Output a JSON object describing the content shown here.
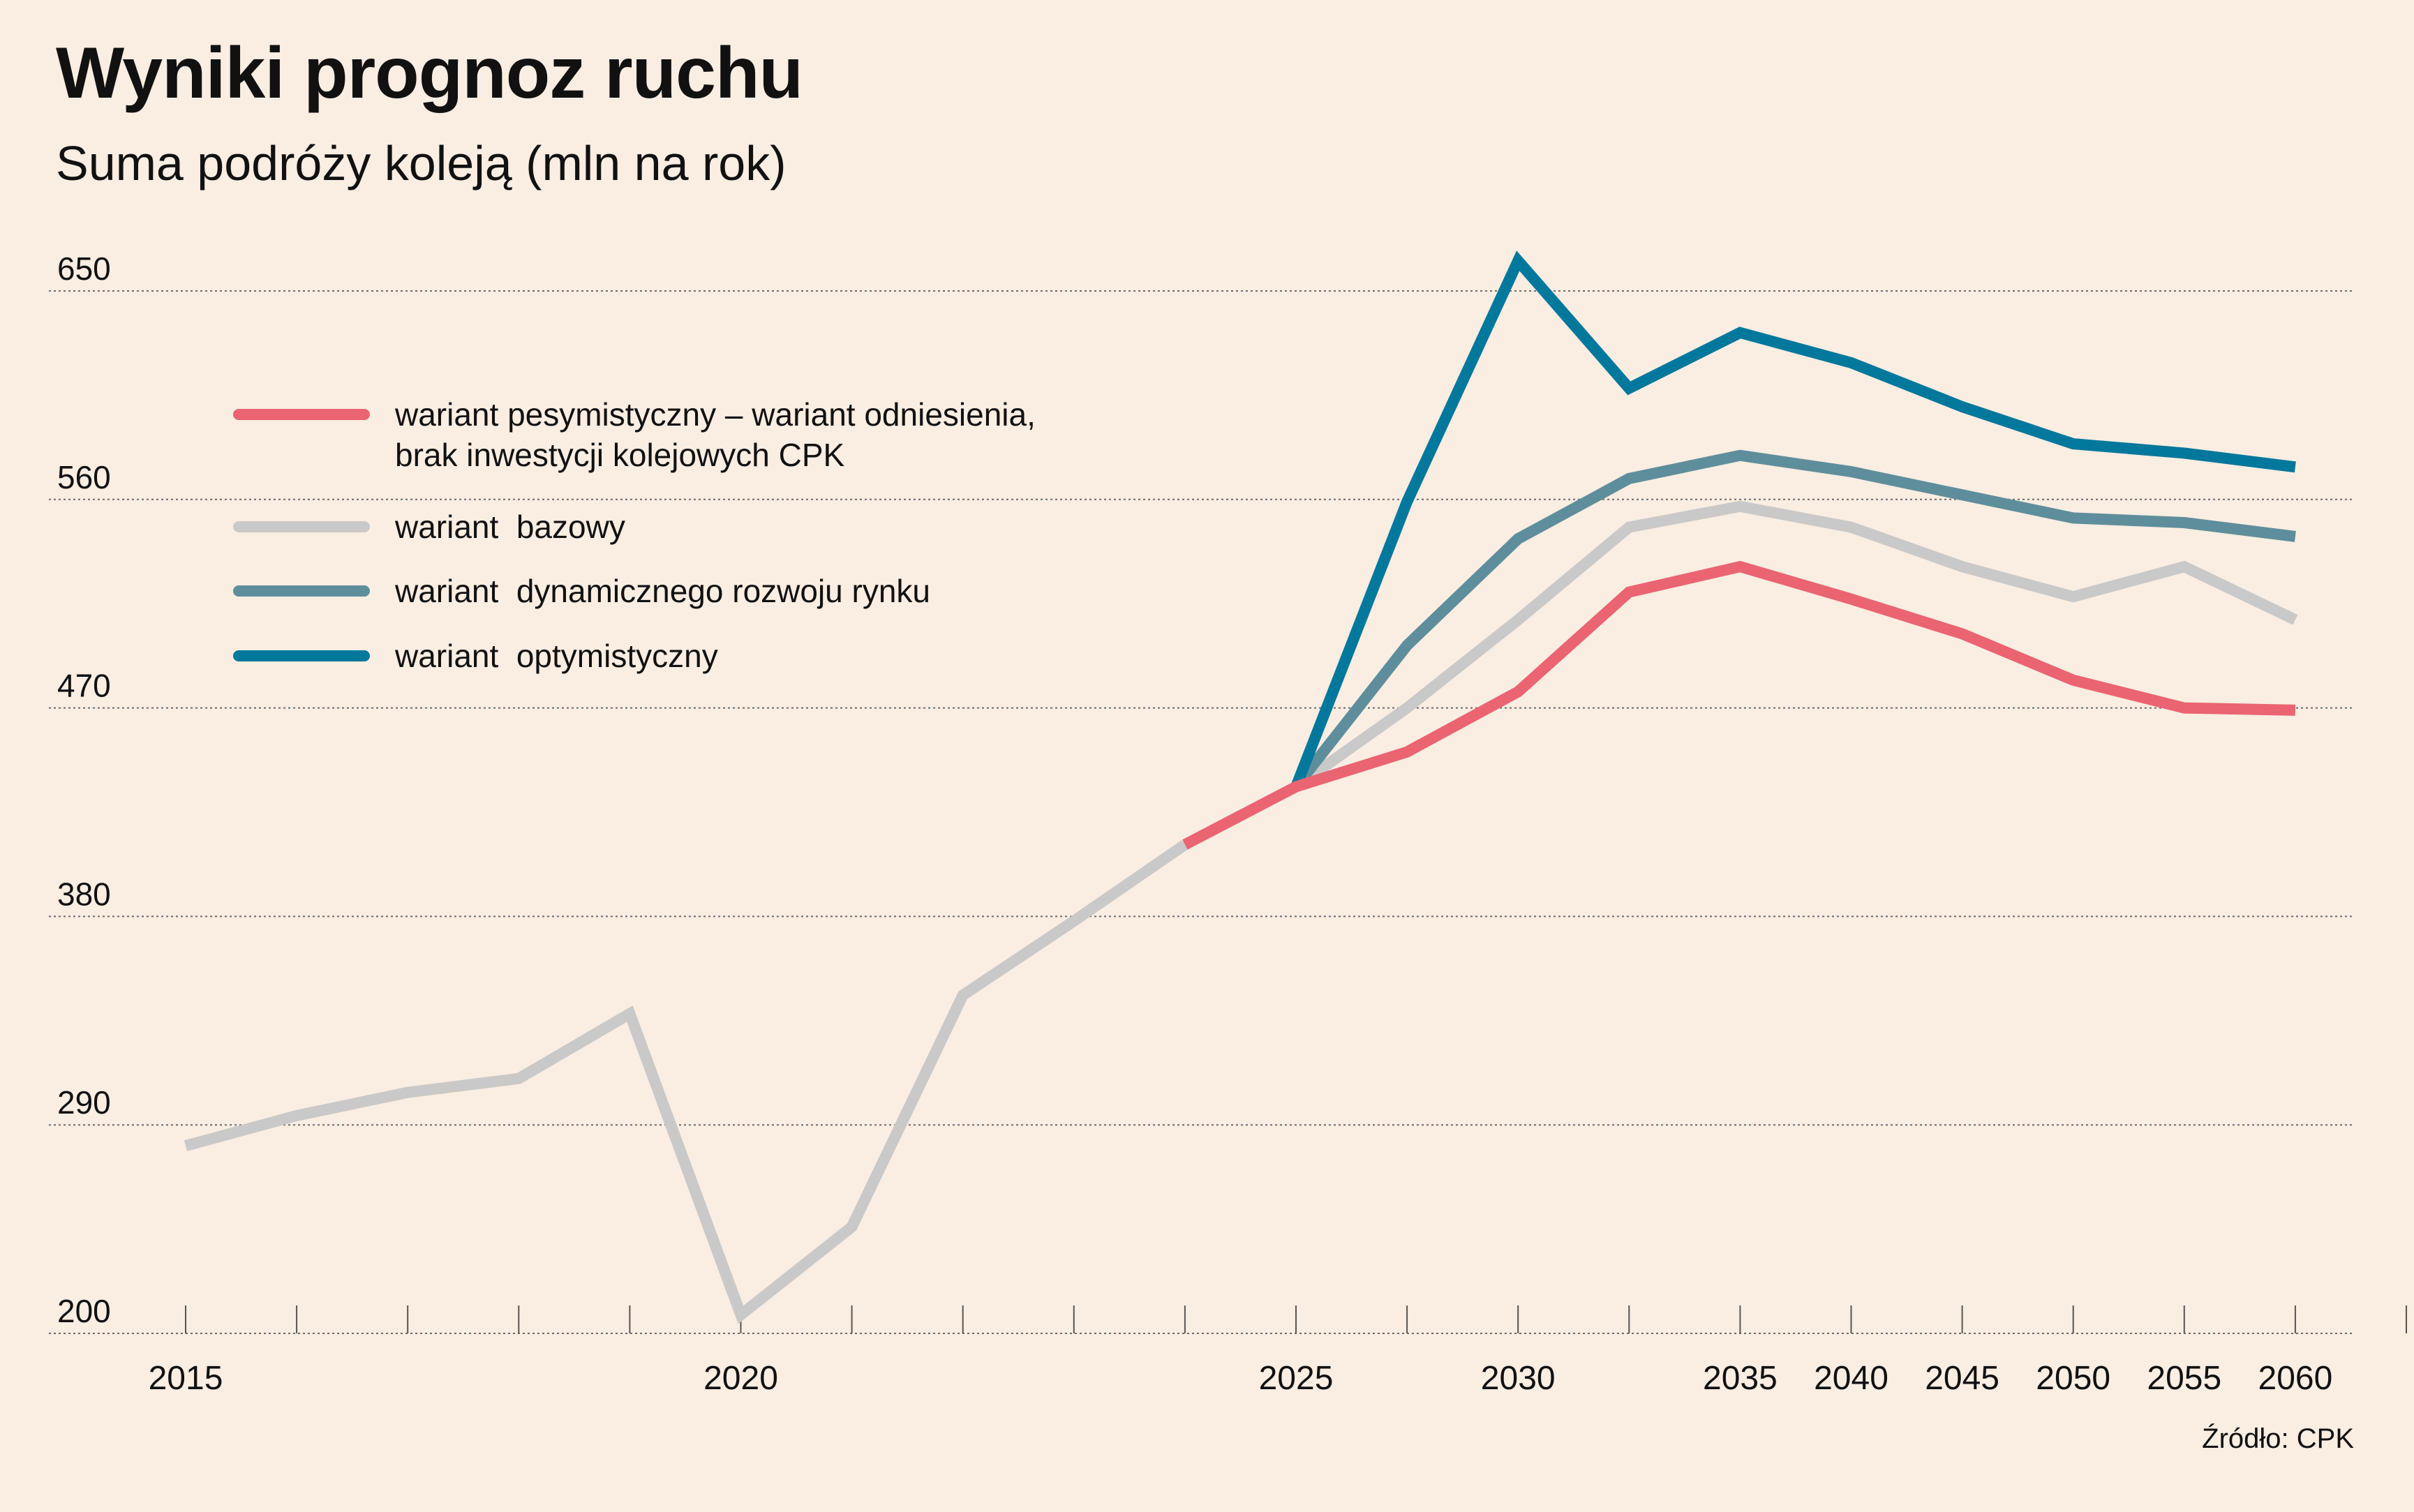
{
  "title": "Wyniki prognoz ruchu",
  "subtitle": "Suma podróży koleją (mln na rok)",
  "source": "Źródło: CPK",
  "chart_data": {
    "type": "line",
    "title": "Wyniki prognoz ruchu",
    "subtitle": "Suma podróży koleją (mln na rok)",
    "xlabel": "",
    "ylabel": "",
    "ylim": [
      200,
      650
    ],
    "yticks": [
      200,
      290,
      380,
      470,
      560,
      650
    ],
    "x_tick_positions": [
      2015,
      2016,
      2017,
      2018,
      2019,
      2020,
      2021,
      2022,
      2023,
      2024,
      2025,
      2026,
      2027,
      2028,
      2029,
      2030,
      2031,
      2032,
      2033,
      2034,
      2035
    ],
    "x_tick_labels": [
      {
        "x": 2015,
        "label": "2015"
      },
      {
        "x": 2020,
        "label": "2020"
      },
      {
        "x": 2025,
        "label": "2025"
      },
      {
        "x": 2027,
        "label": "2030"
      },
      {
        "x": 2029,
        "label": "2035"
      },
      {
        "x": 2030,
        "label": "2040"
      },
      {
        "x": 2031,
        "label": "2045"
      },
      {
        "x": 2032,
        "label": "2050"
      },
      {
        "x": 2033,
        "label": "2055"
      },
      {
        "x": 2034,
        "label": "2060"
      }
    ],
    "grid": true,
    "legend_position": "top-left",
    "legend": [
      {
        "series": "pesymistyczny",
        "lines": [
          "wariant pesymistyczny – wariant odniesienia,",
          "brak inwestycji kolejowych CPK"
        ],
        "color": "#ea6471"
      },
      {
        "series": "bazowy",
        "lines": [
          "wariant  bazowy"
        ],
        "color": "#c9c9c9"
      },
      {
        "series": "dynamiczny",
        "lines": [
          "wariant  dynamicznego rozwoju rynku"
        ],
        "color": "#5e8e9c"
      },
      {
        "series": "optymistyczny",
        "lines": [
          "wariant  optymistyczny"
        ],
        "color": "#02789c"
      }
    ],
    "series": [
      {
        "id": "historia",
        "color": "#c9c9c9",
        "x": [
          2015,
          2016,
          2017,
          2018,
          2019,
          2020,
          2021,
          2022,
          2023,
          2024
        ],
        "y": [
          281,
          294,
          304,
          310,
          338,
          208,
          246,
          346,
          378,
          411
        ]
      },
      {
        "id": "pesymistyczny",
        "color": "#ea6471",
        "x": [
          2024,
          2025,
          2026,
          2027,
          2028,
          2029,
          2030,
          2031,
          2032,
          2033,
          2034
        ],
        "y": [
          411,
          436,
          451,
          477,
          520,
          531,
          517,
          502,
          482,
          470,
          469
        ]
      },
      {
        "id": "bazowy",
        "color": "#c9c9c9",
        "x": [
          2025,
          2026,
          2027,
          2028,
          2029,
          2030,
          2031,
          2032,
          2033,
          2034
        ],
        "y": [
          436,
          470,
          508,
          548,
          557,
          548,
          531,
          518,
          531,
          508
        ]
      },
      {
        "id": "dynamiczny",
        "color": "#5e8e9c",
        "x": [
          2025,
          2026,
          2027,
          2028,
          2029,
          2030,
          2031,
          2032,
          2033,
          2034
        ],
        "y": [
          436,
          497,
          543,
          569,
          579,
          572,
          562,
          552,
          550,
          544
        ]
      },
      {
        "id": "optymistyczny",
        "color": "#02789c",
        "x": [
          2025,
          2026,
          2027,
          2028,
          2029,
          2030,
          2031,
          2032,
          2033,
          2034
        ],
        "y": [
          436,
          559,
          663,
          608,
          632,
          619,
          600,
          584,
          580,
          574
        ]
      }
    ]
  }
}
